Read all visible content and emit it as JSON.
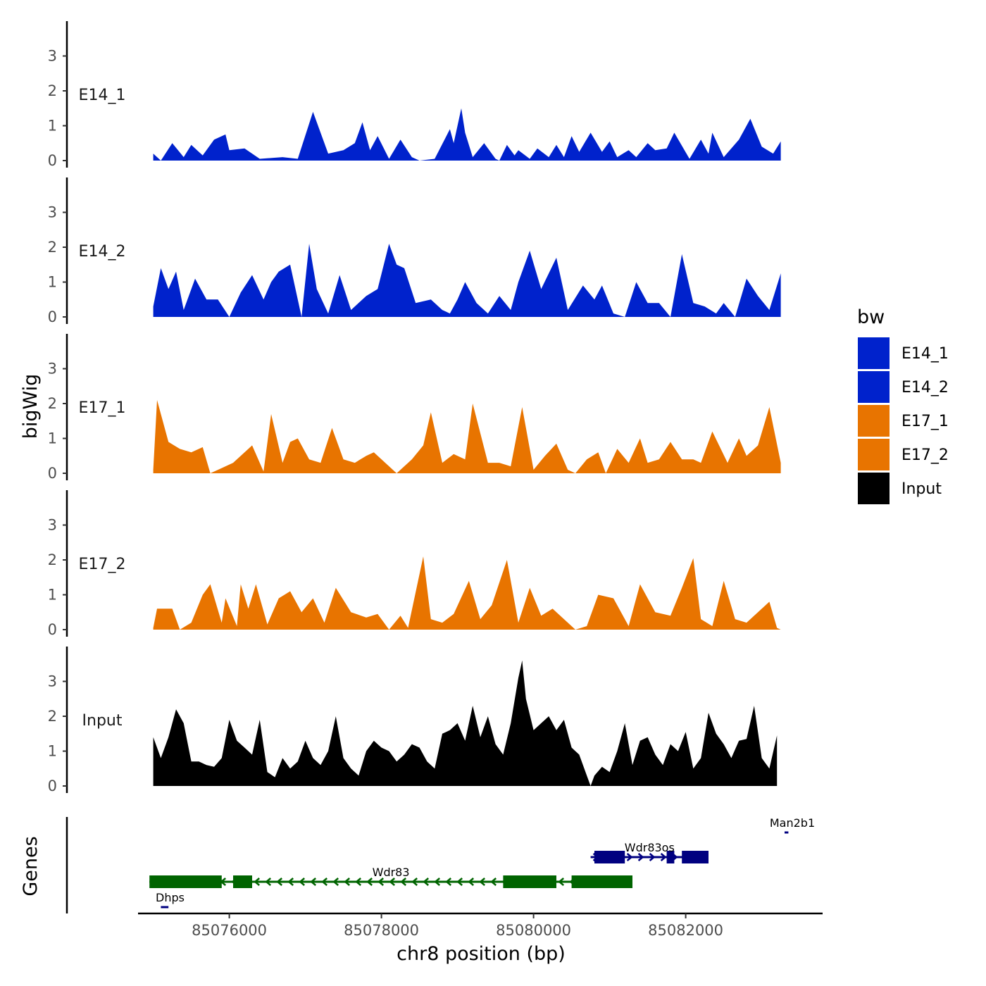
{
  "chart_data": {
    "type": "area",
    "title": "",
    "xlabel": "chr8 position (bp)",
    "ylabel": "bigWig",
    "genes_label": "Genes",
    "xlim": [
      85074800,
      85083800
    ],
    "x_ticks": [
      85076000,
      85078000,
      85080000,
      85082000
    ],
    "x_tick_labels": [
      "85076000",
      "85078000",
      "85080000",
      "85082000"
    ],
    "ylim": [
      0,
      4
    ],
    "y_ticks": [
      0,
      1,
      2,
      3
    ],
    "y_tick_labels": [
      "0",
      "1",
      "2",
      "3"
    ],
    "legend": {
      "title": "bw",
      "position": "right",
      "items": [
        {
          "label": "E14_1",
          "color": "#0022CC"
        },
        {
          "label": "E14_2",
          "color": "#0022CC"
        },
        {
          "label": "E17_1",
          "color": "#E87400"
        },
        {
          "label": "E17_2",
          "color": "#E87400"
        },
        {
          "label": "Input",
          "color": "#000000"
        }
      ]
    },
    "series": [
      {
        "name": "E14_1",
        "color": "#0022CC",
        "x": [
          85075000,
          85075100,
          85075250,
          85075400,
          85075500,
          85075650,
          85075800,
          85075950,
          85076000,
          85076200,
          85076400,
          85076700,
          85076900,
          85077100,
          85077300,
          85077500,
          85077650,
          85077750,
          85077850,
          85077950,
          85078100,
          85078250,
          85078400,
          85078500,
          85078700,
          85078900,
          85078950,
          85079050,
          85079100,
          85079200,
          85079350,
          85079500,
          85079550,
          85079650,
          85079750,
          85079800,
          85079950,
          85080050,
          85080200,
          85080300,
          85080400,
          85080500,
          85080600,
          85080750,
          85080900,
          85081000,
          85081100,
          85081250,
          85081350,
          85081500,
          85081600,
          85081750,
          85081850,
          85082050,
          85082200,
          85082300,
          85082350,
          85082500,
          85082700,
          85082850,
          85083000,
          85083150,
          85083250
        ],
        "values": [
          0.2,
          0,
          0.5,
          0.1,
          0.45,
          0.15,
          0.6,
          0.75,
          0.3,
          0.35,
          0.05,
          0.1,
          0.05,
          1.4,
          0.2,
          0.3,
          0.5,
          1.1,
          0.3,
          0.7,
          0.05,
          0.6,
          0.1,
          0,
          0.05,
          0.9,
          0.5,
          1.5,
          0.8,
          0.1,
          0.5,
          0.05,
          0,
          0.45,
          0.15,
          0.3,
          0.05,
          0.35,
          0.1,
          0.45,
          0.1,
          0.7,
          0.25,
          0.8,
          0.25,
          0.55,
          0.1,
          0.3,
          0.1,
          0.5,
          0.3,
          0.35,
          0.8,
          0.05,
          0.6,
          0.2,
          0.8,
          0.1,
          0.6,
          1.2,
          0.4,
          0.2,
          0.55
        ]
      },
      {
        "name": "E14_2",
        "color": "#0022CC",
        "x": [
          85075000,
          85075100,
          85075200,
          85075300,
          85075400,
          85075550,
          85075700,
          85075850,
          85076000,
          85076150,
          85076300,
          85076450,
          85076550,
          85076650,
          85076800,
          85076950,
          85077050,
          85077150,
          85077300,
          85077450,
          85077600,
          85077800,
          85077950,
          85078100,
          85078200,
          85078300,
          85078450,
          85078650,
          85078800,
          85078900,
          85079000,
          85079100,
          85079250,
          85079400,
          85079550,
          85079700,
          85079800,
          85079950,
          85080100,
          85080300,
          85080450,
          85080650,
          85080800,
          85080900,
          85081050,
          85081200,
          85081350,
          85081500,
          85081650,
          85081800,
          85081950,
          85082100,
          85082250,
          85082400,
          85082500,
          85082650,
          85082800,
          85082950,
          85083100,
          85083250
        ],
        "values": [
          0.3,
          1.4,
          0.8,
          1.3,
          0.2,
          1.1,
          0.5,
          0.5,
          0,
          0.7,
          1.2,
          0.5,
          1,
          1.3,
          1.5,
          0,
          2.1,
          0.8,
          0.1,
          1.2,
          0.2,
          0.6,
          0.8,
          2.1,
          1.5,
          1.4,
          0.4,
          0.5,
          0.2,
          0.1,
          0.5,
          1,
          0.4,
          0.1,
          0.6,
          0.2,
          1,
          1.9,
          0.8,
          1.7,
          0.2,
          0.9,
          0.5,
          0.9,
          0.1,
          0,
          1,
          0.4,
          0.4,
          0,
          1.8,
          0.4,
          0.3,
          0.1,
          0.4,
          0,
          1.1,
          0.6,
          0.2,
          1.25
        ]
      },
      {
        "name": "E17_1",
        "color": "#E87400",
        "x": [
          85075000,
          85075050,
          85075200,
          85075350,
          85075500,
          85075650,
          85075750,
          85075900,
          85076050,
          85076150,
          85076300,
          85076450,
          85076550,
          85076700,
          85076800,
          85076900,
          85077050,
          85077200,
          85077350,
          85077500,
          85077650,
          85077800,
          85077900,
          85078050,
          85078200,
          85078400,
          85078550,
          85078650,
          85078800,
          85078950,
          85079100,
          85079200,
          85079400,
          85079550,
          85079700,
          85079850,
          85080000,
          85080150,
          85080300,
          85080450,
          85080550,
          85080700,
          85080850,
          85080950,
          85081100,
          85081250,
          85081400,
          85081500,
          85081650,
          85081800,
          85081950,
          85082100,
          85082200,
          85082350,
          85082550,
          85082700,
          85082800,
          85082950,
          85083100,
          85083250
        ],
        "values": [
          0.1,
          2.1,
          0.9,
          0.7,
          0.6,
          0.75,
          0,
          0.15,
          0.3,
          0.5,
          0.8,
          0.05,
          1.7,
          0.3,
          0.9,
          1,
          0.4,
          0.3,
          1.3,
          0.4,
          0.3,
          0.5,
          0.6,
          0.3,
          0,
          0.4,
          0.8,
          1.75,
          0.3,
          0.55,
          0.4,
          2,
          0.3,
          0.3,
          0.2,
          1.9,
          0.1,
          0.5,
          0.85,
          0.1,
          0,
          0.4,
          0.6,
          0,
          0.7,
          0.3,
          1,
          0.3,
          0.4,
          0.9,
          0.4,
          0.4,
          0.3,
          1.2,
          0.3,
          1,
          0.5,
          0.8,
          1.9,
          0.3
        ]
      },
      {
        "name": "E17_2",
        "color": "#E87400",
        "x": [
          85075000,
          85075050,
          85075150,
          85075250,
          85075350,
          85075500,
          85075650,
          85075750,
          85075900,
          85075950,
          85076100,
          85076150,
          85076250,
          85076350,
          85076500,
          85076650,
          85076800,
          85076950,
          85077100,
          85077250,
          85077400,
          85077600,
          85077800,
          85077950,
          85078100,
          85078250,
          85078350,
          85078550,
          85078650,
          85078800,
          85078950,
          85079150,
          85079300,
          85079450,
          85079650,
          85079800,
          85079950,
          85080100,
          85080250,
          85080400,
          85080550,
          85080700,
          85080850,
          85081050,
          85081250,
          85081400,
          85081600,
          85081800,
          85081950,
          85082100,
          85082200,
          85082350,
          85082500,
          85082650,
          85082800,
          85082950,
          85083100,
          85083200,
          85083250
        ],
        "values": [
          0.05,
          0.6,
          0.6,
          0.6,
          0,
          0.2,
          1,
          1.3,
          0.2,
          0.9,
          0.1,
          1.3,
          0.6,
          1.3,
          0.15,
          0.9,
          1.1,
          0.5,
          0.9,
          0.2,
          1.2,
          0.5,
          0.35,
          0.45,
          0,
          0.4,
          0.05,
          2.1,
          0.3,
          0.2,
          0.45,
          1.4,
          0.3,
          0.7,
          2,
          0.2,
          1.2,
          0.4,
          0.6,
          0.3,
          0,
          0.1,
          1,
          0.9,
          0.1,
          1.3,
          0.5,
          0.4,
          1.2,
          2.05,
          0.3,
          0.1,
          1.4,
          0.3,
          0.2,
          0.5,
          0.8,
          0.05,
          0
        ]
      },
      {
        "name": "Input",
        "color": "#000000",
        "x": [
          85075000,
          85075100,
          85075200,
          85075300,
          85075400,
          85075500,
          85075600,
          85075700,
          85075800,
          85075900,
          85076000,
          85076100,
          85076200,
          85076300,
          85076400,
          85076500,
          85076600,
          85076700,
          85076800,
          85076900,
          85077000,
          85077100,
          85077200,
          85077300,
          85077400,
          85077500,
          85077600,
          85077700,
          85077800,
          85077900,
          85078000,
          85078100,
          85078200,
          85078300,
          85078400,
          85078500,
          85078600,
          85078700,
          85078800,
          85078900,
          85079000,
          85079100,
          85079200,
          85079300,
          85079400,
          85079500,
          85079600,
          85079700,
          85079800,
          85079850,
          85079900,
          85080000,
          85080100,
          85080200,
          85080300,
          85080400,
          85080500,
          85080600,
          85080700,
          85080750,
          85080800,
          85080900,
          85081000,
          85081100,
          85081200,
          85081300,
          85081400,
          85081500,
          85081600,
          85081700,
          85081800,
          85081900,
          85082000,
          85082100,
          85082200,
          85082300,
          85082400,
          85082500,
          85082600,
          85082700,
          85082800,
          85082900,
          85083000,
          85083100,
          85083200
        ],
        "values": [
          1.4,
          0.8,
          1.4,
          2.2,
          1.8,
          0.7,
          0.7,
          0.6,
          0.55,
          0.8,
          1.9,
          1.3,
          1.1,
          0.9,
          1.9,
          0.4,
          0.25,
          0.8,
          0.5,
          0.7,
          1.3,
          0.8,
          0.6,
          1,
          2,
          0.8,
          0.5,
          0.3,
          1,
          1.3,
          1.1,
          1,
          0.7,
          0.9,
          1.2,
          1.1,
          0.7,
          0.5,
          1.5,
          1.6,
          1.8,
          1.3,
          2.3,
          1.4,
          2,
          1.2,
          0.9,
          1.8,
          3.1,
          3.6,
          2.5,
          1.6,
          1.8,
          2,
          1.6,
          1.9,
          1.1,
          0.9,
          0.3,
          0,
          0.3,
          0.55,
          0.4,
          1,
          1.8,
          0.6,
          1.3,
          1.4,
          0.9,
          0.6,
          1.2,
          1,
          1.55,
          0.5,
          0.8,
          2.1,
          1.5,
          1.2,
          0.8,
          1.3,
          1.35,
          2.3,
          0.8,
          0.5,
          1.45
        ]
      }
    ],
    "genes": [
      {
        "name": "Dhps",
        "color": "#000080",
        "strand": "+",
        "row": 4,
        "start": 85075100,
        "end": 85075200,
        "exons": []
      },
      {
        "name": "Wdr83",
        "color": "#006400",
        "strand": "-",
        "row": 3,
        "start": 85074950,
        "end": 85081300,
        "exons": [
          [
            85074950,
            85075900
          ],
          [
            85076050,
            85076300
          ],
          [
            85079600,
            85080300
          ],
          [
            85080500,
            85081300
          ]
        ]
      },
      {
        "name": "Wdr83os",
        "color": "#000080",
        "strand": "+",
        "row": 2,
        "start": 85080750,
        "end": 85082300,
        "exons": [
          [
            85080800,
            85081200
          ],
          [
            85081750,
            85081850
          ],
          [
            85081950,
            85082300
          ]
        ]
      },
      {
        "name": "Man2b1",
        "color": "#000080",
        "strand": "-",
        "row": 1,
        "start": 85083300,
        "end": 85083350,
        "exons": []
      }
    ]
  }
}
